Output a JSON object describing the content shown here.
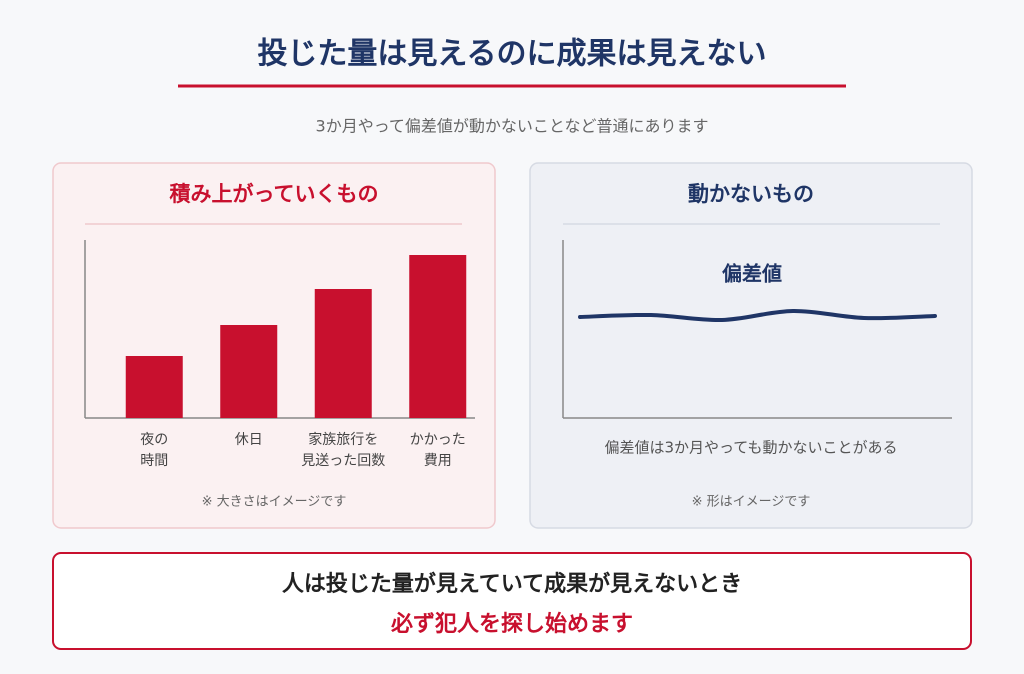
{
  "header": {
    "title": "投じた量は見えるのに成果は見えない",
    "subtitle": "3か月やって偏差値が動かないことなど普通にあります"
  },
  "chart_data": [
    {
      "type": "bar",
      "title": "積み上がっていくもの",
      "categories": [
        "夜の\n時間",
        "休日",
        "家族旅行を\n見送った回数",
        "かかった\n費用"
      ],
      "values": [
        62,
        93,
        129,
        163
      ],
      "color": "#c8102e",
      "ylim": [
        0,
        178
      ],
      "note": "※ 大きさはイメージです"
    },
    {
      "type": "line",
      "title": "動かないもの",
      "series": [
        {
          "name": "偏差値",
          "color": "#1f3566",
          "values": [
            101,
            103,
            98,
            107,
            100,
            102
          ]
        }
      ],
      "ylim": [
        0,
        178
      ],
      "caption": "偏差値は3か月やっても動かないことがある",
      "note": "※ 形はイメージです"
    }
  ],
  "footer": {
    "line1": "人は投じた量が見えていて成果が見えないとき",
    "line2": "必ず犯人を探し始めます"
  }
}
